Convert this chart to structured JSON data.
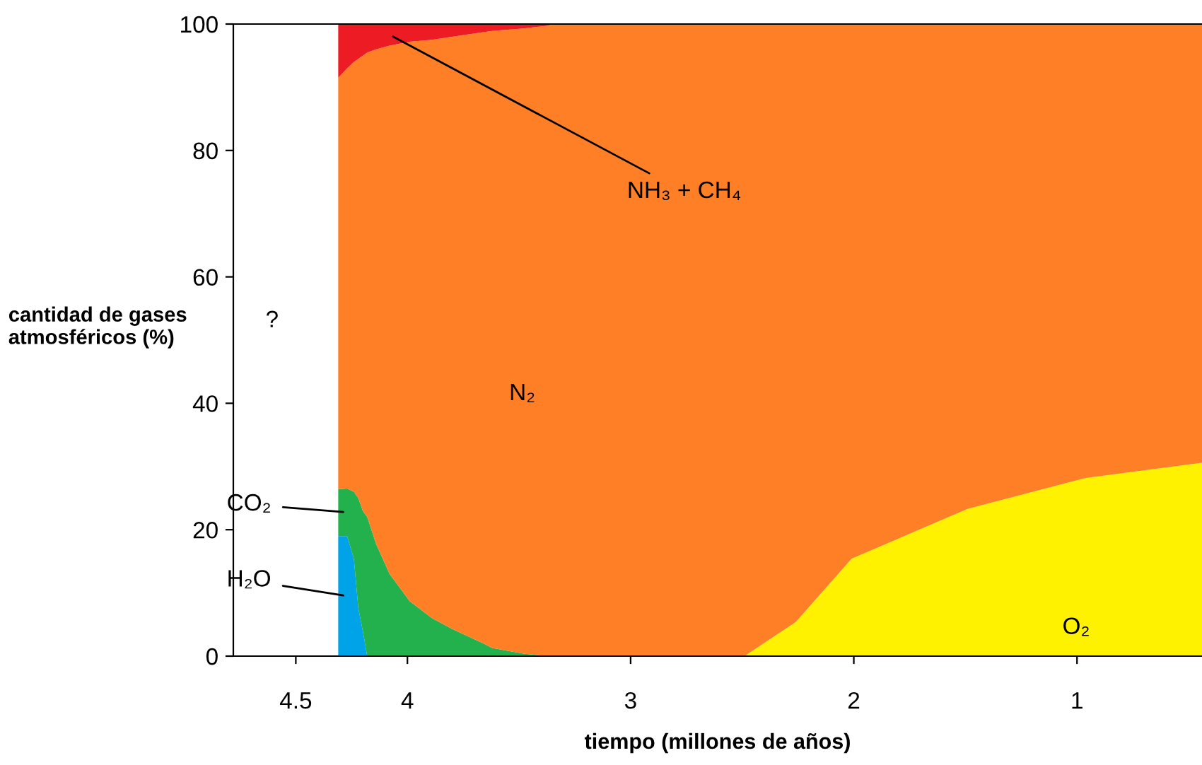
{
  "chart_data": {
    "type": "area",
    "stacked": true,
    "xlabel": "tiempo (millones de años)",
    "ylabel": "cantidad de gases\natmosféricos (%)",
    "x": [
      4.31,
      4.27,
      4.24,
      4.22,
      4.2,
      4.18,
      4.14,
      4.08,
      3.99,
      3.89,
      3.8,
      3.66,
      3.62,
      3.48,
      3.38,
      3.34,
      3.11,
      2.49,
      2.26,
      2.01,
      1.49,
      0.96,
      0.44
    ],
    "xlim": [
      4.78,
      0.44
    ],
    "xticks": [
      4.5,
      4,
      3,
      2,
      1
    ],
    "ylim": [
      0,
      100
    ],
    "yticks": [
      0,
      20,
      40,
      60,
      80,
      100
    ],
    "series": [
      {
        "name": "O₂",
        "color": "#fff200",
        "values": [
          null,
          null,
          null,
          null,
          null,
          null,
          null,
          null,
          null,
          null,
          null,
          null,
          null,
          null,
          null,
          null,
          null,
          0,
          5.4,
          15.4,
          23.3,
          28.2,
          30.6
        ]
      },
      {
        "name": "H₂O",
        "color": "#00a2e8",
        "values": [
          19,
          19,
          15.4,
          7.6,
          4,
          0,
          null,
          null,
          null,
          null,
          null,
          null,
          null,
          null,
          null,
          null,
          null,
          null,
          null,
          null,
          null,
          null,
          null
        ]
      },
      {
        "name": "CO₂",
        "color": "#22b14c",
        "values": [
          7.4,
          7.5,
          10.6,
          17.4,
          19,
          22,
          17.7,
          13,
          8.7,
          6,
          4.3,
          2,
          1.3,
          0.4,
          0,
          null,
          null,
          null,
          null,
          null,
          null,
          null,
          null
        ]
      },
      {
        "name": "N₂",
        "color": "#ff7f27",
        "values": [
          65.1,
          66.5,
          68,
          69.5,
          72,
          73.5,
          78.3,
          83.6,
          88.5,
          91.5,
          93.7,
          96.7,
          97.6,
          98.9,
          99.7,
          100,
          100,
          100,
          94.6,
          84.6,
          76.7,
          71.8,
          69.4
        ]
      },
      {
        "name": "NH₃ + CH₄",
        "color": "#ed1c24",
        "values": [
          8.5,
          7,
          6,
          5.5,
          5,
          4.5,
          4,
          3.4,
          2.8,
          2.5,
          2,
          1.3,
          1.1,
          0.7,
          0.3,
          0,
          null,
          null,
          null,
          null,
          null,
          null,
          null
        ]
      }
    ],
    "annotations": [
      "?"
    ],
    "grid": false,
    "legend": false
  }
}
